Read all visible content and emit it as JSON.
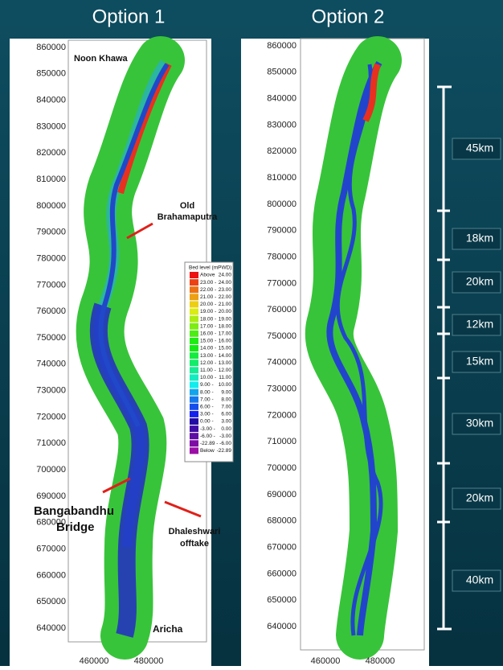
{
  "slide": {
    "options": [
      {
        "title": "Option 1",
        "yticks": [
          860000,
          850000,
          840000,
          830000,
          820000,
          810000,
          800000,
          790000,
          780000,
          770000,
          760000,
          750000,
          740000,
          730000,
          720000,
          710000,
          700000,
          690000,
          680000,
          670000,
          660000,
          650000,
          640000
        ],
        "xticks": [
          460000,
          480000
        ]
      },
      {
        "title": "Option 2",
        "yticks": [
          860000,
          850000,
          840000,
          830000,
          820000,
          810000,
          800000,
          790000,
          780000,
          770000,
          760000,
          750000,
          740000,
          730000,
          720000,
          710000,
          700000,
          690000,
          680000,
          670000,
          660000,
          650000,
          640000
        ],
        "xticks": [
          460000,
          480000
        ]
      }
    ],
    "annotations": [
      [
        "Noon Khawa"
      ],
      [
        "Old",
        "Brahamaputra"
      ],
      [
        "Bangabandhu",
        "Bridge"
      ],
      [
        "Dhaleshwari",
        "offtake"
      ],
      [
        "Aricha"
      ]
    ],
    "legend": {
      "title": "Bed level (mPWD)",
      "rows": [
        [
          "Above",
          "24.00"
        ],
        [
          "23.00 -",
          "24.00"
        ],
        [
          "22.00 -",
          "23.00"
        ],
        [
          "21.00 -",
          "22.00"
        ],
        [
          "20.00 -",
          "21.00"
        ],
        [
          "19.00 -",
          "20.00"
        ],
        [
          "18.00 -",
          "19.00"
        ],
        [
          "17.00 -",
          "18.00"
        ],
        [
          "16.00 -",
          "17.00"
        ],
        [
          "15.00 -",
          "16.00"
        ],
        [
          "14.00 -",
          "15.00"
        ],
        [
          "13.00 -",
          "14.00"
        ],
        [
          "12.00 -",
          "13.00"
        ],
        [
          "11.00 -",
          "12.00"
        ],
        [
          "10.00 -",
          "11.00"
        ],
        [
          "9.00 -",
          "10.00"
        ],
        [
          "8.00 -",
          "9.00"
        ],
        [
          "7.00 -",
          "8.00"
        ],
        [
          "6.00 -",
          "7.00"
        ],
        [
          "3.00 -",
          "6.00"
        ],
        [
          "0.00 -",
          "3.00"
        ],
        [
          "-3.00 -",
          "0.00"
        ],
        [
          "-6.00 -",
          "-3.00"
        ],
        [
          "-22.89 -",
          "-6.00"
        ],
        [
          "Below",
          "-22.89"
        ]
      ]
    },
    "distances": [
      "45km",
      "18km",
      "20km",
      "12km",
      "15km",
      "30km",
      "20km",
      "40km"
    ]
  }
}
